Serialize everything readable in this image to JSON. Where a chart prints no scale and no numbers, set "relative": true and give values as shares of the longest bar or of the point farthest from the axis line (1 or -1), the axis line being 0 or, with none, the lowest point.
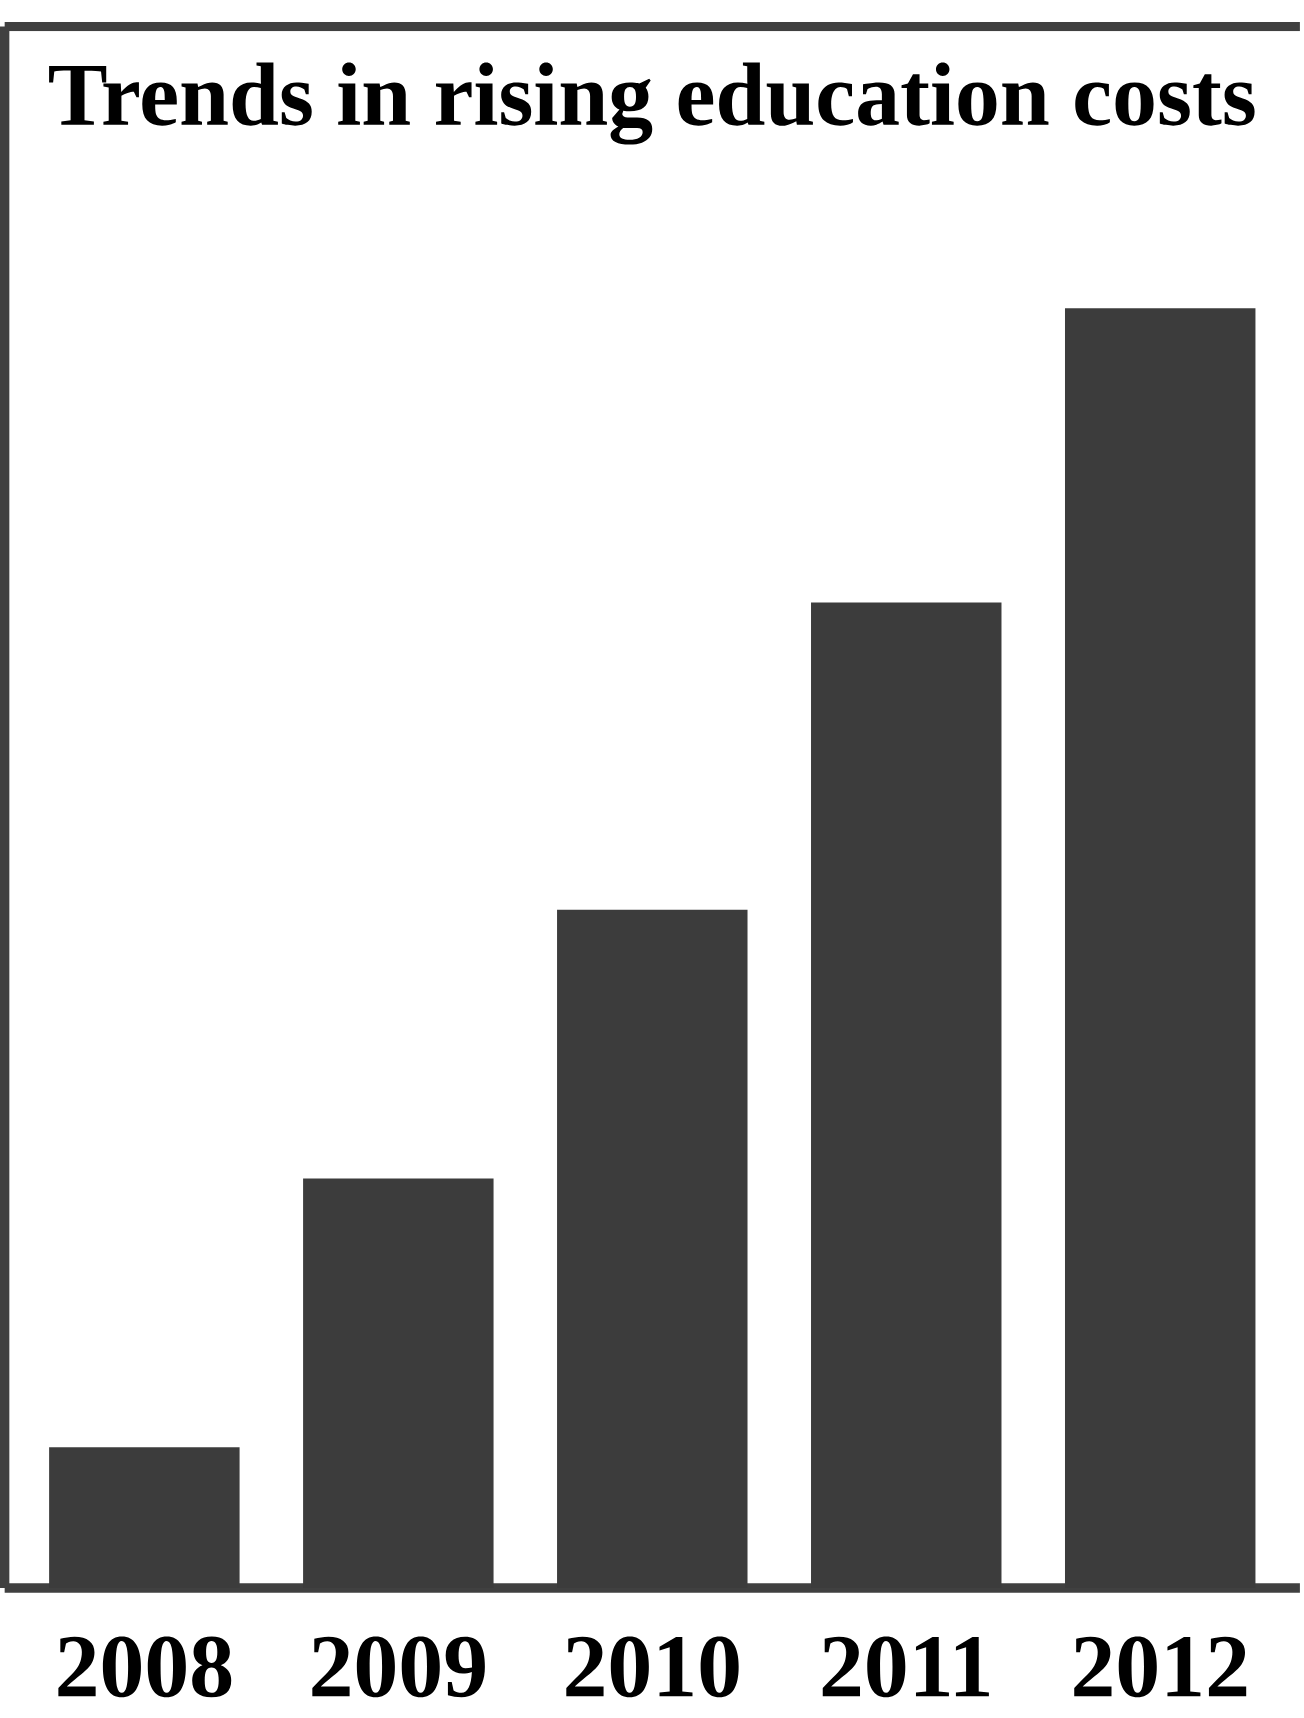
{
  "chart_data": {
    "type": "bar",
    "title": "Trends in rising education costs",
    "categories": [
      "2008",
      "2009",
      "2010",
      "2011",
      "2012"
    ],
    "values": [
      0.11,
      0.32,
      0.53,
      0.77,
      1
    ],
    "color": "#3c3c3c",
    "relative": true
  }
}
